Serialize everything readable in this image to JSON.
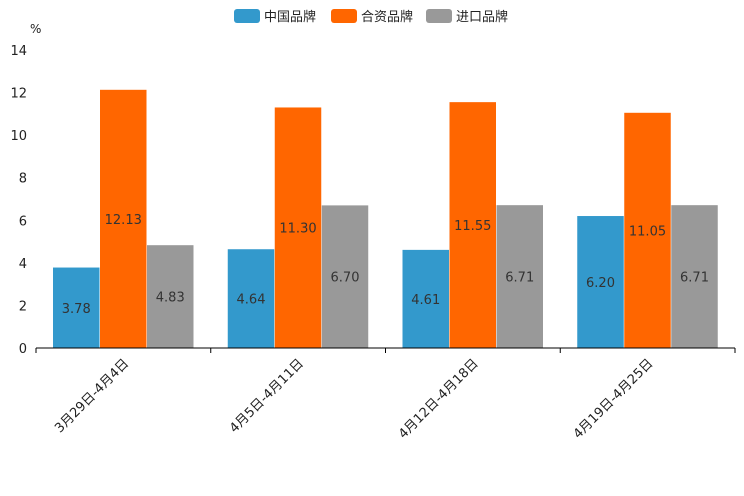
{
  "chart_data": {
    "type": "bar",
    "title": "",
    "xlabel": "",
    "ylabel": "%",
    "ylim": [
      0,
      14
    ],
    "yticks": [
      0,
      2,
      4,
      6,
      8,
      10,
      12,
      14
    ],
    "grid": false,
    "legend_position": "top-center",
    "categories": [
      "3月29日-4月4日",
      "4月5日-4月11日",
      "4月12日-4月18日",
      "4月19日-4月25日"
    ],
    "series": [
      {
        "name": "中国品牌",
        "color": "#3399cc",
        "values": [
          3.78,
          4.64,
          4.61,
          6.2
        ],
        "labels": [
          "3.78",
          "4.64",
          "4.61",
          "6.20"
        ]
      },
      {
        "name": "合资品牌",
        "color": "#ff6600",
        "values": [
          12.13,
          11.3,
          11.55,
          11.05
        ],
        "labels": [
          "12.13",
          "11.30",
          "11.55",
          "11.05"
        ]
      },
      {
        "name": "进口品牌",
        "color": "#999999",
        "values": [
          4.83,
          6.7,
          6.71,
          6.71
        ],
        "labels": [
          "4.83",
          "6.70",
          "6.71",
          "6.71"
        ]
      }
    ]
  }
}
